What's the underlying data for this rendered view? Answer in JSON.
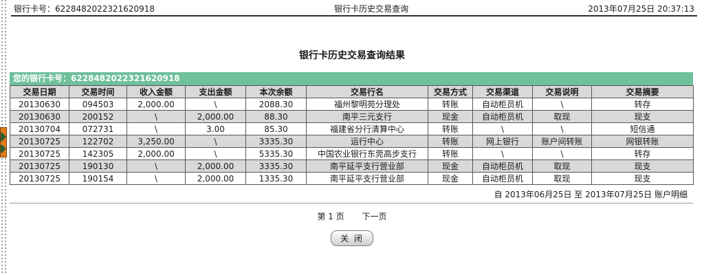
{
  "top_bar": {
    "card_label": "银行卡号：6228482022321620918",
    "title": "银行卡历史交易查询",
    "datetime": "2013年07月25日 20:37:13"
  },
  "page": {
    "title": "银行卡历史交易查询结果"
  },
  "card_banner": {
    "text": "您的银行卡号：6228482022321620918"
  },
  "table": {
    "columns": [
      "交易日期",
      "交易时间",
      "收入金额",
      "支出金额",
      "本次余额",
      "交易行名",
      "交易方式",
      "交易渠道",
      "交易说明",
      "交易摘要"
    ],
    "rows": [
      [
        "20130630",
        "094503",
        "2,000.00",
        "\\",
        "2088.30",
        "福州黎明苑分理处",
        "转账",
        "自动柜员机",
        "\\",
        "转存"
      ],
      [
        "20130630",
        "200152",
        "\\",
        "2,000.00",
        "88.30",
        "南平三元支行",
        "现金",
        "自动柜员机",
        "取现",
        "现支"
      ],
      [
        "20130704",
        "072731",
        "\\",
        "3.00",
        "85.30",
        "福建省分行清算中心",
        "转账",
        "\\",
        "\\",
        "短信通"
      ],
      [
        "20130725",
        "122702",
        "3,250.00",
        "\\",
        "3335.30",
        "运行中心",
        "转账",
        "网上银行",
        "账户间转账",
        "网银转账"
      ],
      [
        "20130725",
        "142305",
        "2,000.00",
        "\\",
        "5335.30",
        "中国农业银行东莞高步支行",
        "转账",
        "\\",
        "\\",
        "转存"
      ],
      [
        "20130725",
        "190130",
        "\\",
        "2,000.00",
        "3335.30",
        "南平延平支行营业部",
        "现金",
        "自动柜员机",
        "取现",
        "现支"
      ],
      [
        "20130725",
        "190154",
        "\\",
        "2,000.00",
        "1335.30",
        "南平延平支行营业部",
        "现金",
        "自动柜员机",
        "取现",
        "现支"
      ]
    ]
  },
  "summary": {
    "date_range": "自  2013年06月25日  至  2013年07月25日  账户明细"
  },
  "pagination": {
    "page_label": "第 1 页",
    "next_label": "下一页"
  },
  "close_button": {
    "label": "关 闭"
  },
  "colors": {
    "banner_bg": "#6fc09b",
    "row_alt_bg": "#d9d9d9",
    "header_bg": "#d9d9d9",
    "table_border": "#555555"
  }
}
